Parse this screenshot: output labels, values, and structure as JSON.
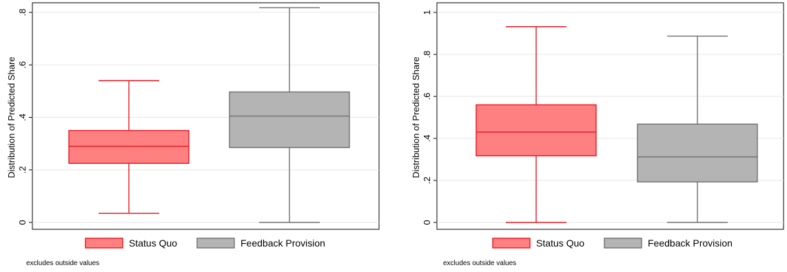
{
  "chart_data": [
    {
      "type": "box",
      "ylabel": "Distribution of Predicted Share",
      "ylim": [
        0,
        0.8
      ],
      "yticks": [
        0,
        0.2,
        0.4,
        0.6,
        0.8
      ],
      "ytick_labels": [
        "0",
        ".2",
        ".4",
        ".6",
        ".8"
      ],
      "grid": true,
      "legend": "bottom",
      "note": "excludes outside values",
      "series": [
        {
          "name": "Status Quo",
          "color": "#ff8080",
          "stroke": "#e8141d",
          "whisker_low": 0.035,
          "q1": 0.225,
          "median": 0.29,
          "q3": 0.35,
          "whisker_high": 0.54
        },
        {
          "name": "Feedback Provision",
          "color": "#b4b4b4",
          "stroke": "#6e6e6e",
          "whisker_low": 0.0,
          "q1": 0.285,
          "median": 0.405,
          "q3": 0.497,
          "whisker_high": 0.818
        }
      ]
    },
    {
      "type": "box",
      "ylabel": "Distribution of Predicted Share",
      "ylim": [
        0,
        1
      ],
      "yticks": [
        0,
        0.2,
        0.4,
        0.6,
        0.8,
        1
      ],
      "ytick_labels": [
        "0",
        ".2",
        ".4",
        ".6",
        ".8",
        "1"
      ],
      "grid": true,
      "legend": "bottom",
      "note": "excludes outside values",
      "series": [
        {
          "name": "Status Quo",
          "color": "#ff8080",
          "stroke": "#e8141d",
          "whisker_low": 0.0,
          "q1": 0.317,
          "median": 0.43,
          "q3": 0.56,
          "whisker_high": 0.932
        },
        {
          "name": "Feedback Provision",
          "color": "#b4b4b4",
          "stroke": "#6e6e6e",
          "whisker_low": 0.0,
          "q1": 0.193,
          "median": 0.312,
          "q3": 0.468,
          "whisker_high": 0.887
        }
      ]
    }
  ]
}
